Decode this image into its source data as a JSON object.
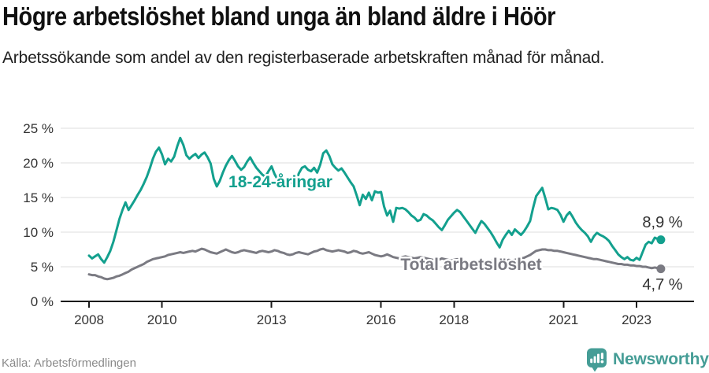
{
  "header": {
    "title": "Högre arbetslöshet bland unga än bland äldre i Höör",
    "subtitle": "Arbetssökande som andel av den registerbaserade arbetskraften månad för månad."
  },
  "footer": {
    "source": "Källa: Arbetsförmedlingen",
    "brand": "Newsworthy",
    "logo_icon": "newsworthy-speech-bubble-bar-chart"
  },
  "colors": {
    "youth_line": "#13a08e",
    "total_line": "#7a7a82",
    "axis": "#1a1a1a",
    "grid": "#dcdcdc",
    "tick_label": "#333333",
    "value_label": "#333333",
    "source_text": "#8a8a8a",
    "brand_teal": "#459d96"
  },
  "chart_data": {
    "type": "line",
    "title": "Högre arbetslöshet bland unga än bland äldre i Höör",
    "subtitle": "Arbetssökande som andel av den registerbaserade arbetskraften månad för månad.",
    "unit": "%",
    "frequency": "monthly",
    "x_start": "2008-01",
    "x_end": "2023-09",
    "ylim": [
      0,
      25
    ],
    "grid": "horizontal-only",
    "legend_position": "inline-labels",
    "yticks": [
      {
        "value": 0,
        "label": "0 %"
      },
      {
        "value": 5,
        "label": "5 %"
      },
      {
        "value": 10,
        "label": "10 %"
      },
      {
        "value": 15,
        "label": "15 %"
      },
      {
        "value": 20,
        "label": "20 %"
      },
      {
        "value": 25,
        "label": "25 %"
      }
    ],
    "xticks": [
      {
        "label": "2008",
        "offset_years": 0
      },
      {
        "label": "2010",
        "offset_years": 2
      },
      {
        "label": "2013",
        "offset_years": 5
      },
      {
        "label": "2016",
        "offset_years": 8
      },
      {
        "label": "2018",
        "offset_years": 10
      },
      {
        "label": "2021",
        "offset_years": 13
      },
      {
        "label": "2023",
        "offset_years": 15
      }
    ],
    "series": [
      {
        "name": "18-24-åringar",
        "inline_label": "18-24-åringar",
        "end_value": 8.9,
        "end_value_label": "8,9 %",
        "color": "#13a08e",
        "values": [
          6.6,
          6.2,
          6.5,
          6.8,
          6.1,
          5.6,
          6.4,
          7.3,
          8.6,
          10.2,
          11.9,
          13.2,
          14.3,
          13.2,
          13.9,
          14.6,
          15.4,
          16.1,
          17.0,
          18.0,
          19.2,
          20.6,
          21.6,
          22.2,
          21.2,
          19.8,
          20.6,
          20.2,
          20.9,
          22.4,
          23.6,
          22.6,
          21.1,
          20.6,
          21.0,
          21.3,
          20.7,
          21.2,
          21.5,
          20.8,
          19.9,
          17.7,
          16.6,
          17.4,
          18.6,
          19.6,
          20.4,
          21.0,
          20.3,
          19.5,
          19.0,
          19.4,
          20.2,
          20.8,
          20.0,
          19.3,
          18.8,
          18.3,
          18.0,
          18.8,
          19.5,
          18.4,
          17.6,
          17.2,
          17.0,
          17.4,
          17.2,
          17.0,
          17.4,
          18.5,
          19.3,
          19.5,
          19.0,
          18.8,
          19.3,
          18.6,
          19.7,
          21.4,
          21.8,
          21.0,
          19.8,
          19.3,
          18.9,
          19.2,
          18.6,
          17.9,
          17.2,
          16.6,
          15.3,
          13.9,
          15.4,
          14.8,
          15.7,
          14.6,
          15.9,
          15.7,
          15.8,
          13.7,
          12.4,
          13.1,
          11.5,
          13.5,
          13.4,
          13.5,
          13.3,
          12.9,
          12.4,
          12.1,
          11.6,
          11.8,
          12.6,
          12.4,
          12.0,
          11.7,
          11.2,
          10.7,
          10.3,
          11.0,
          11.8,
          12.3,
          12.8,
          13.2,
          12.9,
          12.3,
          11.7,
          11.1,
          10.5,
          9.9,
          10.8,
          11.6,
          11.2,
          10.6,
          10.0,
          9.3,
          8.5,
          7.8,
          8.9,
          9.6,
          10.2,
          9.6,
          10.4,
          10.0,
          9.6,
          10.1,
          10.8,
          11.6,
          13.5,
          15.2,
          15.8,
          16.4,
          14.9,
          13.3,
          13.5,
          13.4,
          13.2,
          12.5,
          11.5,
          12.4,
          12.9,
          12.2,
          11.4,
          10.8,
          10.3,
          9.9,
          9.4,
          8.6,
          9.4,
          9.9,
          9.6,
          9.4,
          9.1,
          8.7,
          8.0,
          7.4,
          6.8,
          6.4,
          6.1,
          6.4,
          6.0,
          5.9,
          6.3,
          6.0,
          7.1,
          8.2,
          8.6,
          8.4,
          9.2,
          9.0,
          8.9
        ]
      },
      {
        "name": "Total arbetslöshet",
        "inline_label": "Total arbetslöshet",
        "end_value": 4.7,
        "end_value_label": "4,7 %",
        "color": "#7a7a82",
        "values": [
          3.9,
          3.8,
          3.8,
          3.6,
          3.5,
          3.3,
          3.2,
          3.3,
          3.4,
          3.6,
          3.7,
          3.9,
          4.1,
          4.3,
          4.6,
          4.8,
          5.0,
          5.2,
          5.4,
          5.7,
          5.9,
          6.1,
          6.2,
          6.3,
          6.4,
          6.5,
          6.7,
          6.8,
          6.9,
          7.0,
          7.1,
          7.0,
          7.1,
          7.2,
          7.3,
          7.2,
          7.4,
          7.6,
          7.5,
          7.3,
          7.1,
          7.0,
          6.9,
          7.1,
          7.3,
          7.5,
          7.3,
          7.1,
          7.0,
          7.1,
          7.3,
          7.4,
          7.3,
          7.2,
          7.1,
          7.0,
          7.2,
          7.3,
          7.2,
          7.1,
          7.2,
          7.4,
          7.3,
          7.1,
          7.0,
          6.8,
          6.7,
          6.8,
          7.0,
          7.1,
          7.0,
          6.9,
          6.8,
          7.0,
          7.2,
          7.3,
          7.5,
          7.6,
          7.4,
          7.3,
          7.2,
          7.3,
          7.4,
          7.3,
          7.2,
          7.0,
          7.1,
          7.3,
          7.2,
          7.0,
          6.9,
          7.0,
          7.1,
          6.9,
          6.7,
          6.6,
          6.5,
          6.6,
          6.8,
          6.6,
          6.4,
          6.3,
          6.2,
          6.4,
          6.5,
          6.4,
          6.3,
          6.2,
          6.3,
          6.4,
          6.3,
          6.2,
          6.1,
          6.0,
          5.9,
          6.0,
          6.2,
          6.1,
          6.0,
          5.9,
          6.0,
          6.1,
          6.0,
          5.9,
          5.8,
          5.7,
          5.7,
          5.8,
          5.9,
          5.9,
          5.8,
          5.8,
          5.9,
          5.8,
          5.7,
          5.7,
          5.8,
          5.9,
          6.0,
          5.9,
          6.0,
          6.1,
          6.2,
          6.3,
          6.5,
          6.7,
          7.0,
          7.3,
          7.4,
          7.5,
          7.5,
          7.4,
          7.4,
          7.3,
          7.3,
          7.2,
          7.1,
          7.0,
          6.9,
          6.8,
          6.7,
          6.6,
          6.5,
          6.4,
          6.3,
          6.2,
          6.1,
          6.1,
          6.0,
          5.9,
          5.8,
          5.7,
          5.6,
          5.5,
          5.4,
          5.4,
          5.3,
          5.3,
          5.2,
          5.2,
          5.1,
          5.1,
          5.0,
          5.0,
          4.9,
          4.8,
          4.9,
          4.8,
          4.7
        ]
      }
    ]
  }
}
